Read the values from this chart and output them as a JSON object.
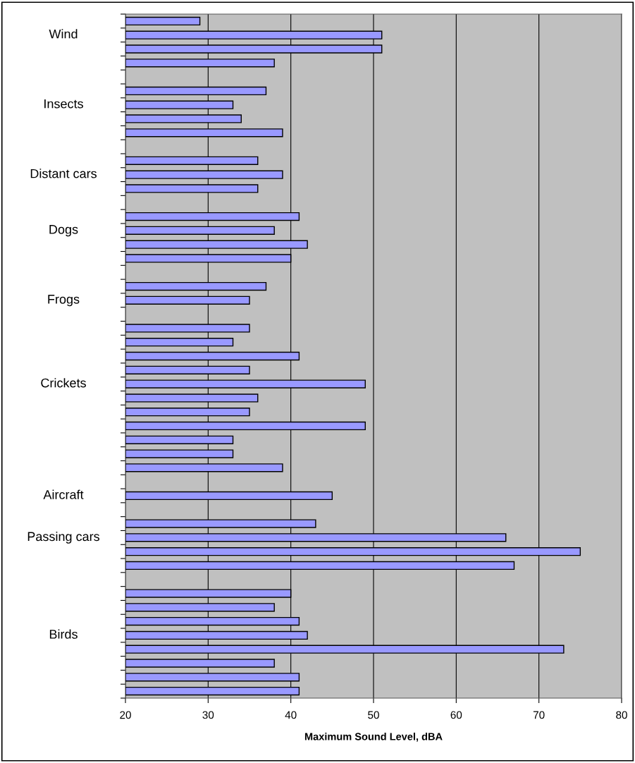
{
  "chart_data": {
    "type": "bar",
    "orientation": "horizontal",
    "xlabel": "Maximum Sound Level, dBA",
    "categories": [
      null,
      "Wind",
      null,
      null,
      null,
      null,
      "Insects",
      null,
      null,
      null,
      null,
      "Distant cars",
      null,
      null,
      null,
      "Dogs",
      null,
      null,
      null,
      null,
      "Frogs",
      null,
      null,
      null,
      null,
      null,
      "Crickets",
      null,
      null,
      null,
      null,
      null,
      null,
      null,
      "Aircraft",
      null,
      null,
      "Passing cars",
      null,
      null,
      null,
      null,
      null,
      null,
      "Birds",
      null,
      null,
      null,
      null
    ],
    "values": [
      29,
      51,
      51,
      38,
      null,
      37,
      33,
      34,
      39,
      null,
      36,
      39,
      36,
      null,
      41,
      38,
      42,
      40,
      null,
      37,
      35,
      null,
      35,
      33,
      41,
      35,
      49,
      36,
      35,
      49,
      33,
      33,
      39,
      null,
      45,
      null,
      43,
      66,
      75,
      67,
      null,
      40,
      38,
      41,
      42,
      73,
      38,
      41,
      41
    ],
    "color": "#9999ff",
    "xlim": [
      20,
      80
    ],
    "xticks": [
      20,
      30,
      40,
      50,
      60,
      70,
      80
    ],
    "grid": "x"
  }
}
